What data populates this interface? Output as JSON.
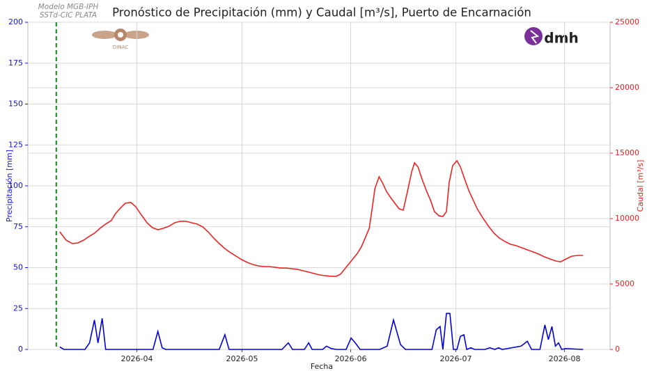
{
  "chart_data": {
    "type": "line",
    "title": "Pronóstico de Precipitación (mm) y Caudal [m³/s], Puerto de Encarnación",
    "model_note": [
      "Modelo MGB-IPH",
      "SSTd-CIC PLATA"
    ],
    "logos": [
      "DINAC",
      "dmh"
    ],
    "xlabel": "Fecha",
    "ylabel": "Precipitación [mm]",
    "y2label": "Caudal [m³/s]",
    "xlim": [
      -9.1,
      157
    ],
    "xticks": [
      {
        "value": 22,
        "label": "2026-04"
      },
      {
        "value": 52,
        "label": "2026-05"
      },
      {
        "value": 83,
        "label": "2026-06"
      },
      {
        "value": 113,
        "label": "2026-07"
      },
      {
        "value": 144,
        "label": "2026-08"
      }
    ],
    "ylim": [
      0,
      200
    ],
    "yticks": [
      0,
      25,
      50,
      75,
      100,
      125,
      150,
      175,
      200
    ],
    "y2lim": [
      0,
      25000
    ],
    "y2ticks": [
      0,
      5000,
      10000,
      15000,
      20000,
      25000
    ],
    "grid": true,
    "ycolor": "#1010ee",
    "y2color": "#ee1c1c",
    "vline": {
      "x": -1,
      "color": "#0a8a0a"
    },
    "series": [
      {
        "color": "#0000dd",
        "axis": "y",
        "x": [
          0,
          1.2,
          7.2,
          8.5,
          9.9,
          10.9,
          12.1,
          13.1,
          26.6,
          28.0,
          29.2,
          30.2,
          45.5,
          47.1,
          48.3,
          63.4,
          65.2,
          66.4,
          69.8,
          71.0,
          72.0,
          75.0,
          76.1,
          77.5,
          78.9,
          81.7,
          83.1,
          84.3,
          85.7,
          91.3,
          93.4,
          95.2,
          97.2,
          98.6,
          106.2,
          107.4,
          108.5,
          109.3,
          110.3,
          111.3,
          112.3,
          113.3,
          114.3,
          115.3,
          116.1,
          117.3,
          118.3,
          121.3,
          122.7,
          124.1,
          125.2,
          126.2,
          131.6,
          133.4,
          134.6,
          137.0,
          138.4,
          139.4,
          140.4,
          141.4,
          142.3,
          143.2,
          144.3,
          149.3
        ],
        "values": [
          1.5,
          0,
          0,
          4,
          18,
          4,
          19,
          0,
          0,
          11,
          1,
          0,
          0,
          9,
          0,
          0,
          4,
          0,
          0,
          4,
          0,
          0,
          2,
          0.5,
          0,
          0,
          7,
          4,
          0,
          0,
          2,
          18,
          3,
          0,
          0,
          12,
          14,
          0,
          22,
          22,
          0,
          0,
          8,
          9,
          0,
          1,
          0,
          0,
          1,
          0,
          1,
          0,
          2,
          5,
          0,
          0,
          15,
          6,
          14,
          2,
          4,
          0,
          0.5,
          0
        ]
      },
      {
        "color": "#ee2222",
        "axis": "y2",
        "x": [
          0,
          1.8,
          3.6,
          5.2,
          6.8,
          8.3,
          9.9,
          11.5,
          13.1,
          14.7,
          15.9,
          17.1,
          18.7,
          20.3,
          21.7,
          23.3,
          24.9,
          26.4,
          28.0,
          29.6,
          31.2,
          32.8,
          34.4,
          36.0,
          37.6,
          39.2,
          40.8,
          42.3,
          43.9,
          45.5,
          47.1,
          48.7,
          50.3,
          51.9,
          53.5,
          55.1,
          56.7,
          58.3,
          59.8,
          61.4,
          63.0,
          64.6,
          66.2,
          67.8,
          69.4,
          71.0,
          72.6,
          74.2,
          75.7,
          77.3,
          78.9,
          80.1,
          81.7,
          83.3,
          84.9,
          86.1,
          87.3,
          88.3,
          89.1,
          89.9,
          91.1,
          92.0,
          93.2,
          94.4,
          95.6,
          96.8,
          98.0,
          99.2,
          100.4,
          101.2,
          102.2,
          103.4,
          104.6,
          105.8,
          106.9,
          108.2,
          109.3,
          110.3,
          111.1,
          112.1,
          113.3,
          114.3,
          115.5,
          116.7,
          117.9,
          119.1,
          120.7,
          122.3,
          123.9,
          125.4,
          127.0,
          128.6,
          130.2,
          131.8,
          133.4,
          135.0,
          136.6,
          138.2,
          139.8,
          141.4,
          142.9,
          144.5,
          146.1,
          147.7,
          149.3
        ],
        "values": [
          8990,
          8350,
          8090,
          8140,
          8350,
          8620,
          8880,
          9260,
          9580,
          9850,
          10370,
          10750,
          11170,
          11230,
          10900,
          10270,
          9680,
          9310,
          9150,
          9260,
          9420,
          9680,
          9790,
          9790,
          9680,
          9580,
          9360,
          8990,
          8510,
          8090,
          7710,
          7400,
          7130,
          6860,
          6650,
          6490,
          6380,
          6330,
          6330,
          6280,
          6220,
          6220,
          6170,
          6120,
          6010,
          5910,
          5800,
          5690,
          5640,
          5590,
          5590,
          5750,
          6280,
          6810,
          7340,
          7870,
          8620,
          9260,
          10750,
          12290,
          13190,
          12770,
          12080,
          11600,
          11170,
          10750,
          10640,
          12080,
          13570,
          14260,
          13940,
          12980,
          12130,
          11380,
          10530,
          10210,
          10160,
          10530,
          12770,
          14040,
          14420,
          13940,
          13030,
          12130,
          11440,
          10750,
          10050,
          9420,
          8880,
          8510,
          8250,
          8030,
          7930,
          7770,
          7610,
          7450,
          7290,
          7080,
          6920,
          6760,
          6700,
          6920,
          7130,
          7180,
          7180
        ]
      }
    ]
  }
}
